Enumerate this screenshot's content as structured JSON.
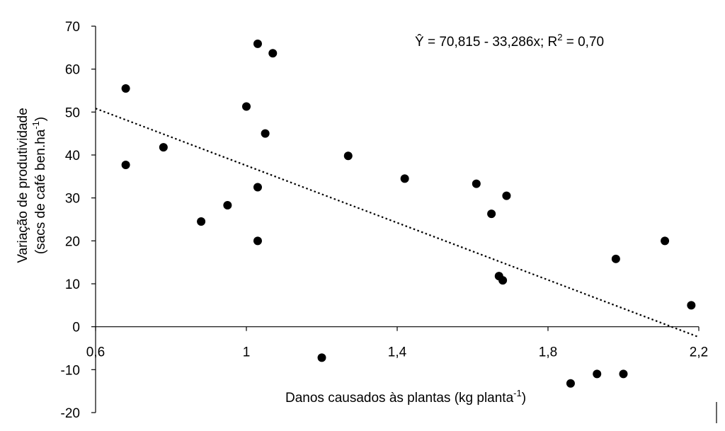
{
  "chart_data": {
    "type": "scatter",
    "title": "",
    "xlabel": "Danos causados às plantas (kg planta",
    "xlabel_sup": "-1",
    "xlabel_end": ")",
    "ylabel_line1": "Variação de produtividade",
    "ylabel_line2": "(sacs de café ben.ha",
    "ylabel_line2_sup": "-1",
    "ylabel_line2_end": ")",
    "xlim": [
      0.6,
      2.2
    ],
    "ylim": [
      -20,
      70
    ],
    "x_ticks": [
      "0,6",
      "1",
      "1,4",
      "1,8",
      "2,2"
    ],
    "y_ticks": [
      "-20",
      "-10",
      "0",
      "10",
      "20",
      "30",
      "40",
      "50",
      "60",
      "70"
    ],
    "equation": {
      "prefix": "Ŷ = 70,815 - 33,286x; R",
      "sup": "2",
      "suffix": " = 0,70"
    },
    "trendline": {
      "intercept": 70.815,
      "slope": -33.286,
      "style": "dotted",
      "x_range": [
        0.6,
        2.2
      ]
    },
    "grid": false,
    "marker_color": "#000000",
    "points": [
      {
        "x": 0.68,
        "y": 55.5
      },
      {
        "x": 0.68,
        "y": 37.7
      },
      {
        "x": 0.78,
        "y": 41.8
      },
      {
        "x": 0.88,
        "y": 24.5
      },
      {
        "x": 0.95,
        "y": 28.3
      },
      {
        "x": 1.0,
        "y": 51.3
      },
      {
        "x": 1.03,
        "y": 65.9
      },
      {
        "x": 1.03,
        "y": 32.5
      },
      {
        "x": 1.03,
        "y": 20.0
      },
      {
        "x": 1.05,
        "y": 45.0
      },
      {
        "x": 1.07,
        "y": 63.7
      },
      {
        "x": 1.2,
        "y": -7.2
      },
      {
        "x": 1.27,
        "y": 39.8
      },
      {
        "x": 1.42,
        "y": 34.5
      },
      {
        "x": 1.61,
        "y": 33.3
      },
      {
        "x": 1.65,
        "y": 26.3
      },
      {
        "x": 1.67,
        "y": 11.8
      },
      {
        "x": 1.68,
        "y": 10.8
      },
      {
        "x": 1.69,
        "y": 30.5
      },
      {
        "x": 1.86,
        "y": -13.2
      },
      {
        "x": 1.93,
        "y": -11.0
      },
      {
        "x": 1.98,
        "y": 15.8
      },
      {
        "x": 2.0,
        "y": -11.0
      },
      {
        "x": 2.11,
        "y": 20.0
      },
      {
        "x": 2.18,
        "y": 5.0
      }
    ]
  }
}
